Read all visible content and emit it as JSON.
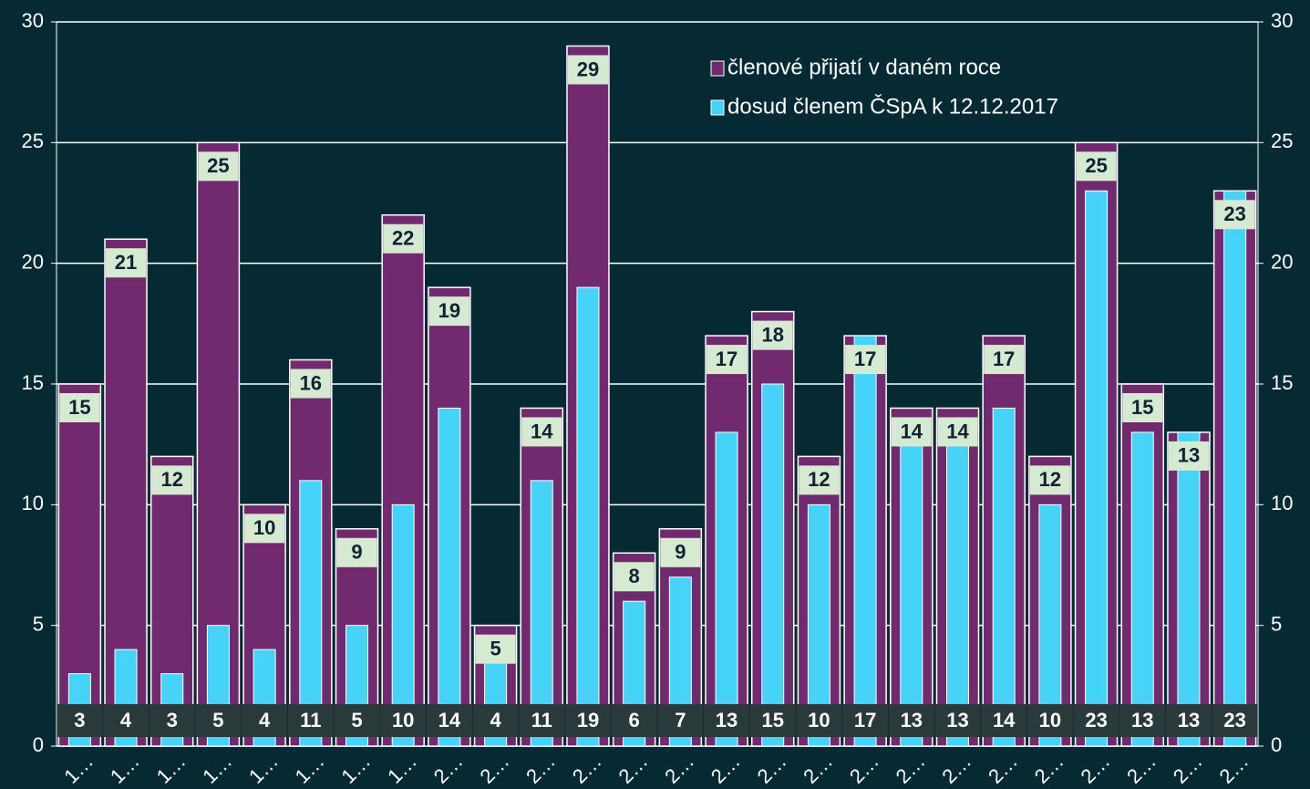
{
  "chart_data": {
    "type": "bar",
    "categories": [
      "1…",
      "1…",
      "1…",
      "1…",
      "1…",
      "1…",
      "1…",
      "1…",
      "2…",
      "2…",
      "2…",
      "2…",
      "2…",
      "2…",
      "2…",
      "2…",
      "2…",
      "2…",
      "2…",
      "2…",
      "2…",
      "2…",
      "2…",
      "2…",
      "2…",
      "2…"
    ],
    "series": [
      {
        "name": "členové přijatí v daném roce",
        "color": "#722a6e",
        "values": [
          15,
          21,
          12,
          25,
          10,
          16,
          9,
          22,
          19,
          5,
          14,
          29,
          8,
          9,
          17,
          18,
          12,
          17,
          14,
          14,
          17,
          12,
          25,
          15,
          13,
          23
        ]
      },
      {
        "name": "dosud členem ČSpA k 12.12.2017",
        "color": "#45d3f7",
        "values": [
          3,
          4,
          3,
          5,
          4,
          11,
          5,
          10,
          14,
          4,
          11,
          19,
          6,
          7,
          13,
          15,
          10,
          17,
          13,
          13,
          14,
          10,
          23,
          13,
          13,
          23
        ]
      }
    ],
    "ylim": [
      0,
      30
    ],
    "yticks": [
      0,
      5,
      10,
      15,
      20,
      25,
      30
    ],
    "y2lim": [
      0,
      30
    ],
    "y2ticks": [
      0,
      5,
      10,
      15,
      20,
      25,
      30
    ],
    "grid": true
  }
}
